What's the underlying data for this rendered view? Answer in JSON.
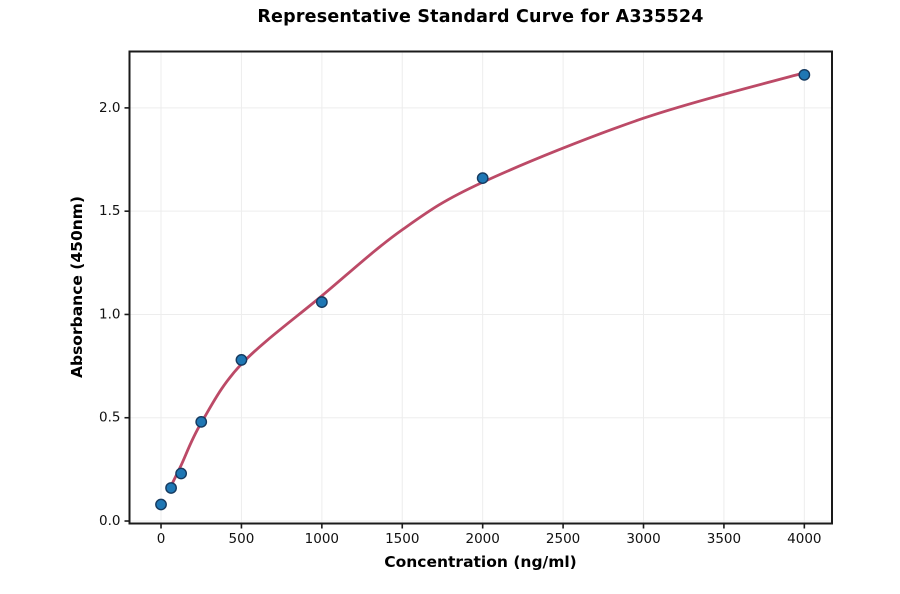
{
  "chart_data": {
    "type": "scatter",
    "title": "Representative Standard Curve for A335524",
    "xlabel": "Concentration (ng/ml)",
    "ylabel": "Absorbance (450nm)",
    "xlim": [
      -196,
      4172
    ],
    "ylim": [
      -0.012,
      2.273
    ],
    "x_ticks": [
      0,
      500,
      1000,
      1500,
      2000,
      2500,
      3000,
      3500,
      4000
    ],
    "y_ticks": [
      0.0,
      0.5,
      1.0,
      1.5,
      2.0
    ],
    "grid": true,
    "legend": "none",
    "series": [
      {
        "name": "standard-points",
        "type": "scatter",
        "x": [
          0,
          62.5,
          125,
          250,
          500,
          1000,
          2000,
          4000
        ],
        "y": [
          0.08,
          0.16,
          0.23,
          0.48,
          0.78,
          1.06,
          1.66,
          2.16
        ],
        "marker_color": "#1f77b4",
        "marker_edge_color": "#163a5f",
        "marker_radius": 5.2,
        "marker_edge_width": 1.4
      },
      {
        "name": "fit-curve",
        "type": "line",
        "x": [
          62.5,
          125,
          250,
          500,
          1000,
          1500,
          2000,
          3000,
          4000
        ],
        "y": [
          0.17,
          0.27,
          0.475,
          0.76,
          1.09,
          1.41,
          1.64,
          1.95,
          2.17
        ],
        "color": "#bc4a67",
        "width": 2.8
      }
    ],
    "colors": {
      "background": "#ffffff",
      "grid": "#ededed",
      "spine": "#1a1a1a",
      "tick": "#1a1a1a",
      "tick_label": "#111111"
    }
  }
}
